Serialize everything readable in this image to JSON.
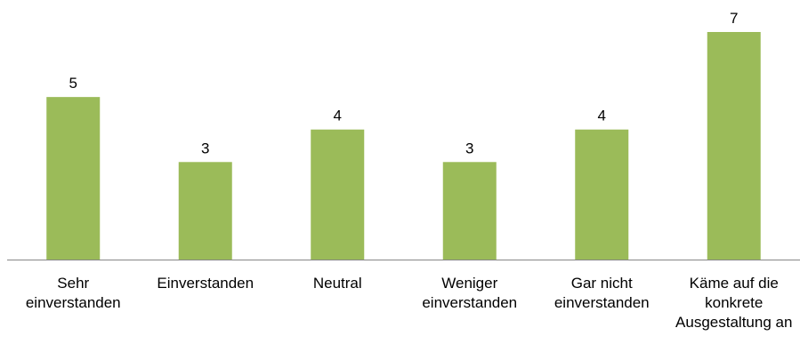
{
  "chart_data": {
    "type": "bar",
    "categories": [
      "Sehr einverstanden",
      "Einverstanden",
      "Neutral",
      "Weniger einverstanden",
      "Gar nicht einverstanden",
      "Käme auf die konkrete Ausgestaltung an"
    ],
    "values": [
      5,
      3,
      4,
      3,
      4,
      7
    ],
    "color": "#9bbb59"
  }
}
